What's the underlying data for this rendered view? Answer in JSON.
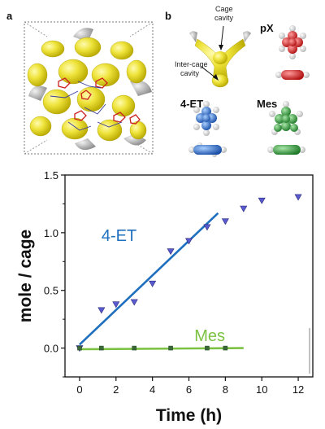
{
  "panels": {
    "a": "a",
    "b": "b"
  },
  "structure": {
    "cage_label_line1": "Cage",
    "cage_label_line2": "cavity",
    "intercage_label_line1": "Inter-cage",
    "intercage_label_line2": "cavity"
  },
  "molecules": {
    "px": {
      "label": "pX",
      "color": "#d42020"
    },
    "et": {
      "label": "4-ET",
      "color": "#2a6fd6"
    },
    "mes": {
      "label": "Mes",
      "color": "#2f9a3a"
    }
  },
  "colors": {
    "cage_yellow": "#e8e22a",
    "et_series": "#1f6fbf",
    "mes_series": "#7cc242",
    "marker_fill": "#5a5ad0"
  },
  "chart_data": {
    "type": "scatter",
    "xlabel": "Time (h)",
    "ylabel": "mole / cage",
    "xlim": [
      -0.8,
      12.8
    ],
    "ylim": [
      -0.25,
      1.5
    ],
    "xticks": [
      0,
      2,
      4,
      6,
      8,
      10,
      12
    ],
    "yticks": [
      0.0,
      0.5,
      1.0,
      1.5
    ],
    "xtick_labels": [
      "0",
      "2",
      "4",
      "6",
      "8",
      "10",
      "12"
    ],
    "ytick_labels": [
      "0.0",
      "0.5",
      "1.0",
      "1.5"
    ],
    "series": [
      {
        "name": "4-ET",
        "x": [
          0,
          1.2,
          2,
          3,
          4,
          5,
          6,
          7,
          8,
          9,
          10,
          12
        ],
        "y": [
          0.0,
          0.33,
          0.38,
          0.4,
          0.56,
          0.84,
          0.93,
          1.05,
          1.1,
          1.21,
          1.28,
          1.31
        ],
        "fit": {
          "x": [
            0,
            7.6
          ],
          "y": [
            0.03,
            1.17
          ]
        }
      },
      {
        "name": "Mes",
        "x": [
          0,
          1.2,
          3,
          5,
          7,
          8
        ],
        "y": [
          0.0,
          0.0,
          0.0,
          0.0,
          0.0,
          0.0
        ],
        "fit": {
          "x": [
            0,
            9
          ],
          "y": [
            -0.01,
            0.0
          ]
        }
      }
    ]
  }
}
